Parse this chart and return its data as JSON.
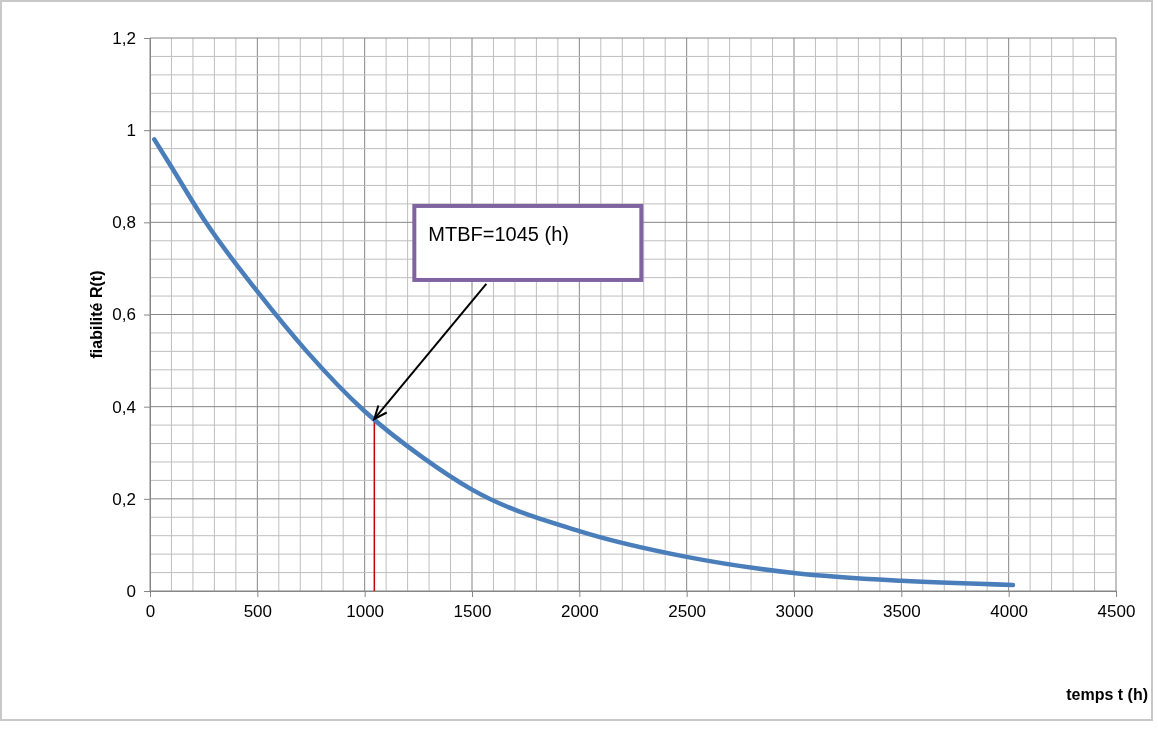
{
  "chart_data": {
    "type": "line",
    "xlabel": "temps t (h)",
    "ylabel": "fiabilité R(t)",
    "x": [
      20,
      100,
      260,
      500,
      730,
      1000,
      1270,
      1500,
      2000,
      2500,
      3000,
      3500,
      4020
    ],
    "series": [
      {
        "color": "#4a7ebb",
        "values": [
          0.98,
          0.92,
          0.8,
          0.65,
          0.52,
          0.39,
          0.29,
          0.22,
          0.13,
          0.074,
          0.039,
          0.022,
          0.013
        ]
      }
    ],
    "xlim": [
      0,
      4500
    ],
    "xticks": [
      0,
      500,
      1000,
      1500,
      2000,
      2500,
      3000,
      3500,
      4000,
      4500
    ],
    "ylim": [
      0,
      1.2
    ],
    "yticks": [
      0,
      {
        "value": 0.2,
        "label": "0,2"
      },
      {
        "value": 0.4,
        "label": "0,4"
      },
      {
        "value": 0.6,
        "label": "0,6"
      },
      {
        "value": 0.8,
        "label": "0,8"
      },
      1,
      {
        "value": 1.2,
        "label": "1,2"
      }
    ],
    "grid": true,
    "marker": "none",
    "line_style": "solid",
    "ref_lines": [
      {
        "axis": "x",
        "value": 1045,
        "color": "#c00000"
      }
    ],
    "annotations": [
      "MTBF=1045 (h)"
    ]
  }
}
